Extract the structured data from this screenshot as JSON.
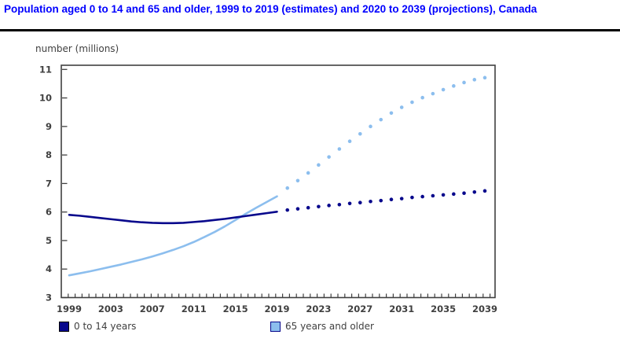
{
  "title": "Population aged 0 to 14 and 65 and older, 1999 to 2019 (estimates) and 2020 to 2039 (projections), Canada",
  "colors": {
    "title_text": "#0000ff",
    "axis_text": "#404040",
    "plot_border": "#404040",
    "series_dark_navy": "#08088c",
    "series_light_blue": "#8cbeee"
  },
  "legend": [
    {
      "label": "0 to 14 years",
      "color": "#08088c",
      "border": "#000000"
    },
    {
      "label": "65 years and older",
      "color": "#8cbeee",
      "border": "#08088c"
    }
  ],
  "chart_data": {
    "type": "line",
    "title": "Population aged 0 to 14 and 65 and older, 1999 to 2019 (estimates) and 2020 to 2039 (projections), Canada",
    "xlabel": "",
    "ylabel": "number (millions)",
    "ylim": [
      3,
      11
    ],
    "yticks": [
      3,
      4,
      5,
      6,
      7,
      8,
      9,
      10,
      11
    ],
    "x_range": [
      1999,
      2039
    ],
    "xtick_labels": [
      "1999",
      "2003",
      "2007",
      "2011",
      "2015",
      "2019",
      "2023",
      "2027",
      "2031",
      "2035",
      "2039"
    ],
    "grid": false,
    "legend_position": "bottom",
    "series": [
      {
        "name": "0 to 14 years",
        "color": "#08088c",
        "estimates": {
          "style": "solid",
          "start_year": 1999,
          "end_year": 2019,
          "values": [
            5.9,
            5.87,
            5.83,
            5.79,
            5.75,
            5.71,
            5.67,
            5.64,
            5.62,
            5.61,
            5.61,
            5.62,
            5.65,
            5.68,
            5.72,
            5.76,
            5.81,
            5.86,
            5.91,
            5.96,
            6.01
          ]
        },
        "projections": {
          "style": "dotted",
          "start_year": 2020,
          "end_year": 2039,
          "values": [
            6.07,
            6.11,
            6.15,
            6.19,
            6.23,
            6.26,
            6.3,
            6.33,
            6.37,
            6.4,
            6.44,
            6.47,
            6.51,
            6.54,
            6.57,
            6.6,
            6.63,
            6.66,
            6.7,
            6.74
          ]
        }
      },
      {
        "name": "65 years and older",
        "color": "#8cbeee",
        "estimates": {
          "style": "solid",
          "start_year": 1999,
          "end_year": 2019,
          "values": [
            3.78,
            3.85,
            3.92,
            4.0,
            4.08,
            4.16,
            4.25,
            4.34,
            4.44,
            4.55,
            4.67,
            4.8,
            4.95,
            5.12,
            5.3,
            5.5,
            5.72,
            5.94,
            6.15,
            6.35,
            6.55
          ]
        },
        "projections": {
          "style": "dotted",
          "start_year": 2020,
          "end_year": 2039,
          "values": [
            6.84,
            7.1,
            7.37,
            7.65,
            7.93,
            8.21,
            8.48,
            8.74,
            9.0,
            9.24,
            9.47,
            9.67,
            9.85,
            10.01,
            10.15,
            10.29,
            10.42,
            10.54,
            10.64,
            10.71
          ]
        }
      }
    ]
  }
}
